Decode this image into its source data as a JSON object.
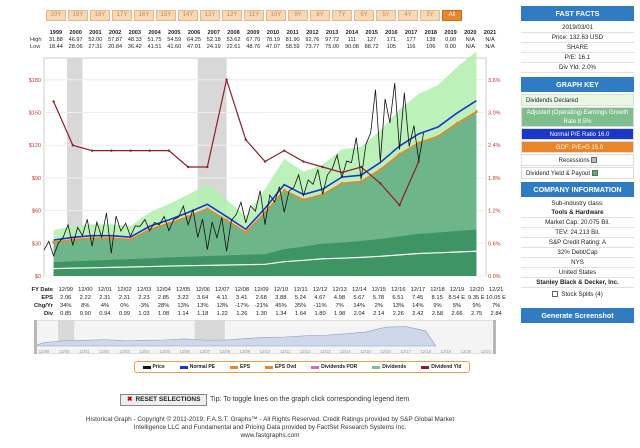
{
  "periods": [
    "20Y",
    "19Y",
    "18Y",
    "17Y",
    "16Y",
    "15Y",
    "14Y",
    "13Y",
    "12Y",
    "11Y",
    "10Y",
    "9Y",
    "8Y",
    "7Y",
    "6Y",
    "5Y",
    "4Y",
    "3Y",
    "All"
  ],
  "active_period": "All",
  "year_table": {
    "years": [
      "1999",
      "2000",
      "2001",
      "2002",
      "2003",
      "2004",
      "2005",
      "2006",
      "2007",
      "2008",
      "2009",
      "2010",
      "2011",
      "2012",
      "2013",
      "2014",
      "2015",
      "2016",
      "2017",
      "2018",
      "2019",
      "2020",
      "2021"
    ],
    "high": [
      "31.88",
      "46.97",
      "52.00",
      "57.87",
      "48.33",
      "51.75",
      "54.59",
      "64.25",
      "52.18",
      "53.62",
      "67.70",
      "78.19",
      "81.90",
      "92.76",
      "97.72",
      "111",
      "127",
      "171",
      "177",
      "138",
      "0.00",
      "N/A",
      "N/A"
    ],
    "low": [
      "18.44",
      "28.06",
      "27.31",
      "20.84",
      "36.42",
      "41.51",
      "41.60",
      "47.01",
      "24.19",
      "22.61",
      "48.76",
      "47.07",
      "58.59",
      "73.77",
      "75.00",
      "90.08",
      "88.72",
      "105",
      "116",
      "106",
      "0.00",
      "N/A",
      "N/A"
    ],
    "high_label": "High",
    "low_label": "Low"
  },
  "bottom_table": {
    "fy_label": "FY Date",
    "dates": [
      "12/99",
      "12/00",
      "12/01",
      "12/02",
      "12/03",
      "12/04",
      "12/05",
      "12/06",
      "12/07",
      "12/08",
      "12/09",
      "12/10",
      "12/11",
      "12/12",
      "12/13",
      "12/14",
      "12/15",
      "12/16",
      "12/17",
      "12/18",
      "12/19",
      "12/20",
      "12/21"
    ],
    "eps_label": "EPS",
    "eps": [
      "2.06",
      "2.22",
      "2.31",
      "2.31",
      "2.23",
      "2.85",
      "3.22",
      "3.64",
      "4.11",
      "3.41",
      "2.68",
      "3.88",
      "5.24",
      "4.67",
      "4.98",
      "5.67",
      "5.78",
      "6.51",
      "7.45",
      "8.15",
      "8.54 E",
      "9.35 E",
      "10.05 E"
    ],
    "chg_label": "Chg/Yr",
    "chg": [
      "34%",
      "8%",
      "4%",
      "0%",
      "-3%",
      "28%",
      "13%",
      "13%",
      "13%",
      "-17%",
      "-21%",
      "45%",
      "35%",
      "-11%",
      "7%",
      "14%",
      "2%",
      "13%",
      "14%",
      "9%",
      "5%",
      "9%",
      "7%"
    ],
    "div_label": "Div",
    "div": [
      "0.85",
      "0.90",
      "0.94",
      "0.99",
      "1.03",
      "1.08",
      "1.14",
      "1.18",
      "1.22",
      "1.26",
      "1.30",
      "1.34",
      "1.64",
      "1.80",
      "1.98",
      "2.04",
      "2.14",
      "2.26",
      "2.42",
      "2.58",
      "2.66",
      "2.75",
      "2.84"
    ]
  },
  "legend": {
    "items": [
      {
        "label": "Price",
        "color": "#111111"
      },
      {
        "label": "Normal PE",
        "color": "#1a37c9"
      },
      {
        "label": "EPS",
        "color": "#e8862a"
      },
      {
        "label": "EPS Ovd",
        "color": "#e8862a"
      },
      {
        "label": "Dividends POR",
        "color": "#d66ac8"
      },
      {
        "label": "Dividends",
        "color": "#7fbf8d"
      },
      {
        "label": "Dividend Yld",
        "color": "#8b1f2b"
      }
    ]
  },
  "controls": {
    "reset_label": "RESET SELECTIONS",
    "tip": "Tip: To toggle lines on the graph click corresponding legend item"
  },
  "copyright": {
    "line1": "Historical Graph - Copyright © 2011-2019, F.A.S.T. Graphs™ - All Rights Reserved. Credit Ratings provided by S&P Global Market",
    "line2": "Intelligence LLC and Fundamental and Pricing Data provided by FactSet Research Systems Inc.",
    "line3": "www.fastgraphs.com"
  },
  "panel": {
    "fast_facts_title": "FAST FACTS",
    "date": "2019/03/01",
    "price": "Price: 132.63 USD",
    "share": "SHARE",
    "pe": "P/E: 16.1",
    "div_yld": "Div Yld: 2.0%",
    "graph_key_title": "GRAPH KEY",
    "key_dividends": "Dividends Declared",
    "key_operating": "Adjusted (Operating) Earnings Growth Rate 8.5%",
    "key_normal_pe": "Normal P/E Ratio 16.0",
    "key_gdf": "GDF: P/E=G 15.0",
    "key_recessions": "Recessions",
    "key_yield": "Dividend Yield & Payout",
    "company_title": "COMPANY INFORMATION",
    "subindustry": "Sub-industry class:",
    "subindustry_value": "Tools & Hardware",
    "market_cap": "Market Cap: 20.075 Bil.",
    "tev": "TEV: 24.213 Bil.",
    "credit": "S&P Credit Rating: A",
    "debt": "32% Debt/Cap",
    "exchange": "NYS",
    "country": "United States",
    "company_name": "Stanley Black & Decker, Inc.",
    "splits": "Stock Splits (4)",
    "generate": "Generate Screenshot"
  },
  "chart_data": {
    "type": "line",
    "x_labels": [
      "12/99",
      "12/00",
      "12/01",
      "12/02",
      "12/03",
      "12/04",
      "12/05",
      "12/06",
      "12/07",
      "12/08",
      "12/09",
      "12/10",
      "12/11",
      "12/12",
      "12/13",
      "12/14",
      "12/15",
      "12/16",
      "12/17",
      "12/18",
      "12/19",
      "12/20",
      "12/21"
    ],
    "y_ticks": [
      "$0",
      "$30",
      "$60",
      "$90",
      "$120",
      "$150",
      "$180"
    ],
    "y_right_ticks": [
      "0.0%",
      "0.6%",
      "1.2%",
      "1.8%",
      "2.4%",
      "3.0%",
      "3.6%"
    ],
    "ylim": [
      0,
      200
    ],
    "y2lim": [
      0,
      4.0
    ],
    "price_high": [
      31.88,
      46.97,
      52.0,
      57.87,
      48.33,
      51.75,
      54.59,
      64.25,
      52.18,
      53.62,
      67.7,
      78.19,
      81.9,
      92.76,
      97.72,
      111,
      127,
      171,
      177,
      138
    ],
    "price_low": [
      18.44,
      28.06,
      27.31,
      20.84,
      36.42,
      41.51,
      41.6,
      47.01,
      24.19,
      22.61,
      48.76,
      47.07,
      58.59,
      73.77,
      75.0,
      90.08,
      88.72,
      105,
      116,
      106
    ],
    "eps": [
      2.06,
      2.22,
      2.31,
      2.31,
      2.23,
      2.85,
      3.22,
      3.64,
      4.11,
      3.41,
      2.68,
      3.88,
      5.24,
      4.67,
      4.98,
      5.67,
      5.78,
      6.51,
      7.45,
      8.15,
      8.54,
      9.35,
      10.05
    ],
    "dividends": [
      0.85,
      0.9,
      0.94,
      0.99,
      1.03,
      1.08,
      1.14,
      1.18,
      1.22,
      1.26,
      1.3,
      1.34,
      1.64,
      1.8,
      1.98,
      2.04,
      2.14,
      2.26,
      2.42,
      2.58,
      2.66,
      2.75,
      2.84
    ],
    "normal_pe": 16.0,
    "gdf_pe": 15.0,
    "dividend_yield": [
      3.2,
      2.4,
      2.3,
      2.3,
      2.3,
      2.3,
      2.3,
      2.0,
      2.0,
      3.6,
      2.5,
      2.1,
      2.3,
      2.1,
      2.0,
      1.9,
      2.0,
      1.7,
      1.3,
      2.1
    ],
    "recessions": [
      [
        1.2,
        2.0
      ],
      [
        8.0,
        9.5
      ]
    ]
  }
}
